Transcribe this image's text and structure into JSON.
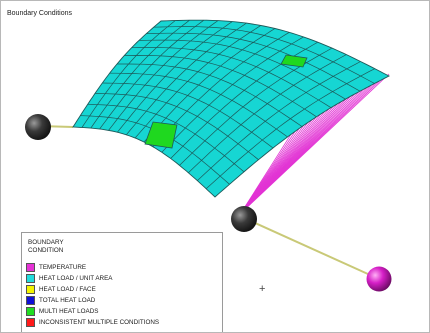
{
  "viewport": {
    "title": "Boundary Conditions"
  },
  "legend": {
    "title_line1": "BOUNDARY",
    "title_line2": "CONDITION",
    "items": [
      {
        "label": "TEMPERATURE",
        "color": "#e633d6"
      },
      {
        "label": "HEAT LOAD / UNIT AREA",
        "color": "#22dddd"
      },
      {
        "label": "HEAT LOAD / FACE",
        "color": "#f4f400"
      },
      {
        "label": "TOTAL HEAT LOAD",
        "color": "#1010d8"
      },
      {
        "label": "MULTI HEAT LOADS",
        "color": "#22dd22"
      },
      {
        "label": "INCONSISTENT MULTIPLE CONDITIONS",
        "color": "#ff1a1a"
      }
    ]
  },
  "cursor_glyph": "+",
  "colors": {
    "surface": "#16d6d3",
    "mesh_line": "#1c5a5a",
    "multi_heat_patch": "#1fd81f",
    "temperature_links": "#e233d4",
    "temperature_node": "#d61fc7",
    "node": "#3a3a3a",
    "connector": "#c9c977"
  }
}
